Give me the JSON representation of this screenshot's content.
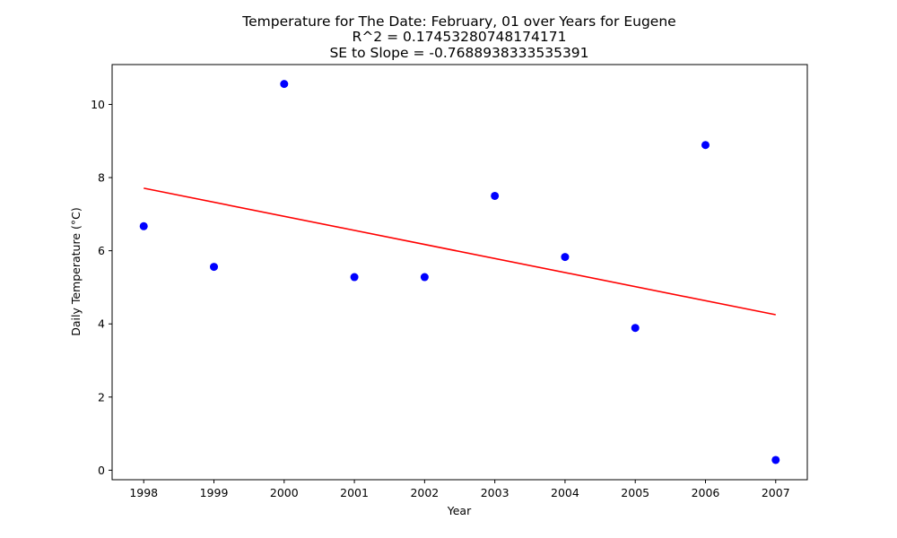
{
  "chart_data": {
    "type": "scatter",
    "title_lines": [
      "Temperature for The Date: February, 01 over Years for Eugene",
      "R^2 = 0.17453280748174171",
      "SE to Slope = -0.7688938333535391"
    ],
    "xlabel": "Year",
    "ylabel": "Daily Temperature (°C)",
    "xlim": [
      1997.55,
      2007.45
    ],
    "ylim": [
      -0.26,
      11.09
    ],
    "x_ticks": [
      1998,
      1999,
      2000,
      2001,
      2002,
      2003,
      2004,
      2005,
      2006,
      2007
    ],
    "y_ticks": [
      0,
      2,
      4,
      6,
      8,
      10
    ],
    "grid": false,
    "series": [
      {
        "type": "scatter",
        "color": "#0000ff",
        "points": [
          {
            "x": 1998,
            "y": 6.67
          },
          {
            "x": 1999,
            "y": 5.56
          },
          {
            "x": 2000,
            "y": 10.56
          },
          {
            "x": 2001,
            "y": 5.28
          },
          {
            "x": 2002,
            "y": 5.28
          },
          {
            "x": 2003,
            "y": 7.5
          },
          {
            "x": 2004,
            "y": 5.83
          },
          {
            "x": 2005,
            "y": 3.89
          },
          {
            "x": 2006,
            "y": 8.89
          },
          {
            "x": 2007,
            "y": 0.28
          }
        ]
      },
      {
        "type": "line",
        "color": "#ff0000",
        "points": [
          {
            "x": 1998,
            "y": 7.71
          },
          {
            "x": 2007,
            "y": 4.25
          }
        ]
      }
    ]
  }
}
